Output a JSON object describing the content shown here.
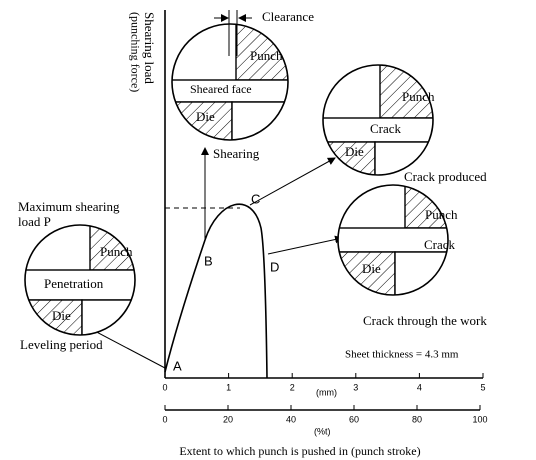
{
  "y_axis_label": [
    "Shearing load",
    "(punching force)"
  ],
  "max_load_label": [
    "Maximum shearing",
    "load P"
  ],
  "points": [
    "A",
    "B",
    "C",
    "D"
  ],
  "insets": [
    {
      "labels": [
        "Punch",
        "Sheared face",
        "Die"
      ],
      "note": "Clearance",
      "arrow_label": "Shearing"
    },
    {
      "labels": [
        "Punch",
        "Crack",
        "Die"
      ],
      "caption": "Crack produced"
    },
    {
      "labels": [
        "Punch",
        "Crack",
        "Die"
      ],
      "caption": "Crack through the work"
    },
    {
      "labels": [
        "Punch",
        "Penetration",
        "Die"
      ],
      "caption": "Leveling period"
    }
  ],
  "sheet_thickness": "Sheet thickness = 4.3 mm",
  "x_axis_mm": {
    "unit": "(mm)",
    "ticks": [
      0,
      1,
      2,
      3,
      4,
      5
    ]
  },
  "x_axis_percent": {
    "unit": "(%t)",
    "ticks": [
      0,
      20,
      40,
      60,
      80,
      100
    ]
  },
  "x_axis_label": "Extent to which punch is pushed in (punch stroke)"
}
